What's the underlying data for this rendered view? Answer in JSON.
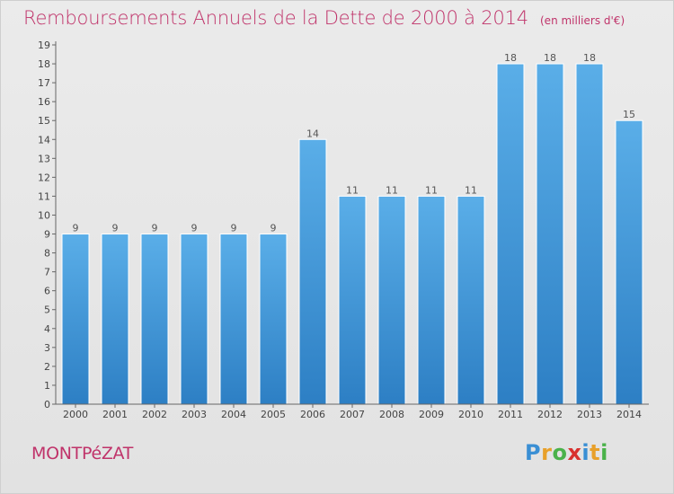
{
  "header": {
    "title": "Remboursements Annuels de la Dette de 2000 à 2014",
    "unit": "(en milliers d'€)"
  },
  "footer": {
    "commune": "MONTPéZAT",
    "logo": {
      "letters": [
        "P",
        "r",
        "o",
        "x",
        "i",
        "t",
        "i"
      ],
      "colors": [
        "#3a8fd4",
        "#e8a02a",
        "#4ab24a",
        "#d8302e",
        "#3a8fd4",
        "#e8a02a",
        "#4ab24a"
      ]
    }
  },
  "colors": {
    "bar_light": "#5aaee8",
    "bar_dark": "#2d7fc4",
    "title": "#c0336a",
    "axis": "#666666"
  },
  "chart_data": {
    "type": "bar",
    "categories": [
      "2000",
      "2001",
      "2002",
      "2003",
      "2004",
      "2005",
      "2006",
      "2007",
      "2008",
      "2009",
      "2010",
      "2011",
      "2012",
      "2013",
      "2014"
    ],
    "values": [
      9,
      9,
      9,
      9,
      9,
      9,
      14,
      11,
      11,
      11,
      11,
      18,
      18,
      18,
      15
    ],
    "data_labels": [
      "9",
      "9",
      "9",
      "9",
      "9",
      "9",
      "14",
      "11",
      "11",
      "11",
      "11",
      "18",
      "18",
      "18",
      "15"
    ],
    "yticks": [
      "0",
      "1",
      "2",
      "3",
      "4",
      "5",
      "6",
      "7",
      "8",
      "9",
      "10",
      "11",
      "12",
      "13",
      "14",
      "15",
      "16",
      "17",
      "18",
      "19"
    ],
    "ylim": [
      0,
      19
    ],
    "grid": false
  }
}
